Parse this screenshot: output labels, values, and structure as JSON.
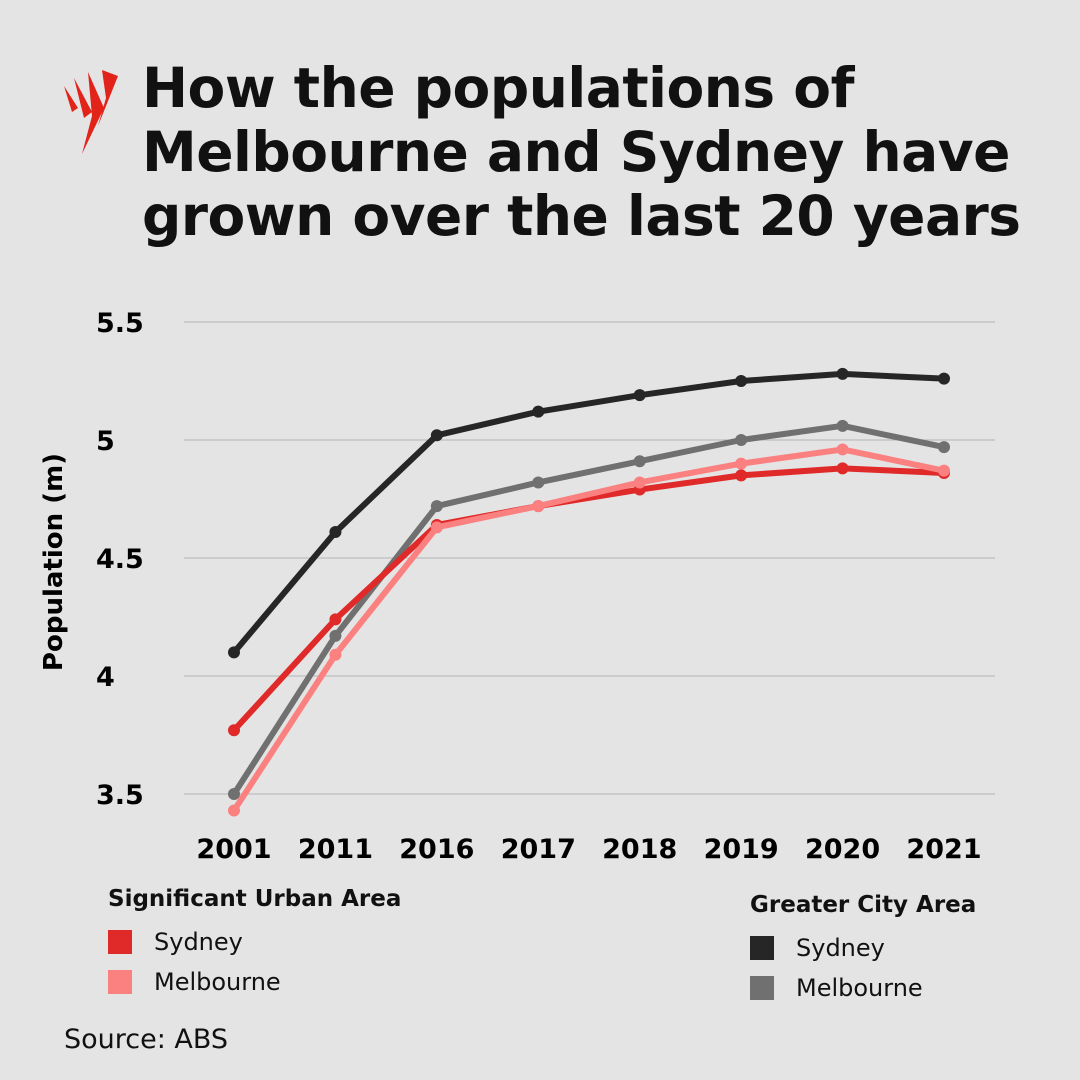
{
  "title": "How the populations of Melbourne and Sydney have grown over the last 20 years",
  "source": "Source: ABS",
  "logo": {
    "name": "sbs-logo",
    "color": "#e2231a"
  },
  "legend": {
    "sua": {
      "title": "Significant Urban Area",
      "items": [
        {
          "label": "Sydney",
          "color": "#e02a2a"
        },
        {
          "label": "Melbourne",
          "color": "#fb8080"
        }
      ]
    },
    "gca": {
      "title": "Greater City Area",
      "items": [
        {
          "label": "Sydney",
          "color": "#262626"
        },
        {
          "label": "Melbourne",
          "color": "#707070"
        }
      ]
    }
  },
  "chart_data": {
    "type": "line",
    "ylabel": "Population (m)",
    "xlabel": "",
    "categories": [
      "2001",
      "2011",
      "2016",
      "2017",
      "2018",
      "2019",
      "2020",
      "2021"
    ],
    "ylim": [
      3.5,
      5.5
    ],
    "yticks": [
      "3.5",
      "4",
      "4.5",
      "5",
      "5.5"
    ],
    "grid": true,
    "series": [
      {
        "name": "Greater City Area Sydney",
        "color": "#262626",
        "values": [
          4.1,
          4.61,
          5.02,
          5.12,
          5.19,
          5.25,
          5.28,
          5.26
        ]
      },
      {
        "name": "Greater City Area Melbourne",
        "color": "#707070",
        "values": [
          3.5,
          4.17,
          4.72,
          4.82,
          4.91,
          5.0,
          5.06,
          4.97
        ]
      },
      {
        "name": "Significant Urban Area Sydney",
        "color": "#e02a2a",
        "values": [
          3.77,
          4.24,
          4.64,
          4.72,
          4.79,
          4.85,
          4.88,
          4.86
        ]
      },
      {
        "name": "Significant Urban Area Melbourne",
        "color": "#fb8080",
        "values": [
          3.43,
          4.09,
          4.63,
          4.72,
          4.82,
          4.9,
          4.96,
          4.87
        ]
      }
    ]
  }
}
